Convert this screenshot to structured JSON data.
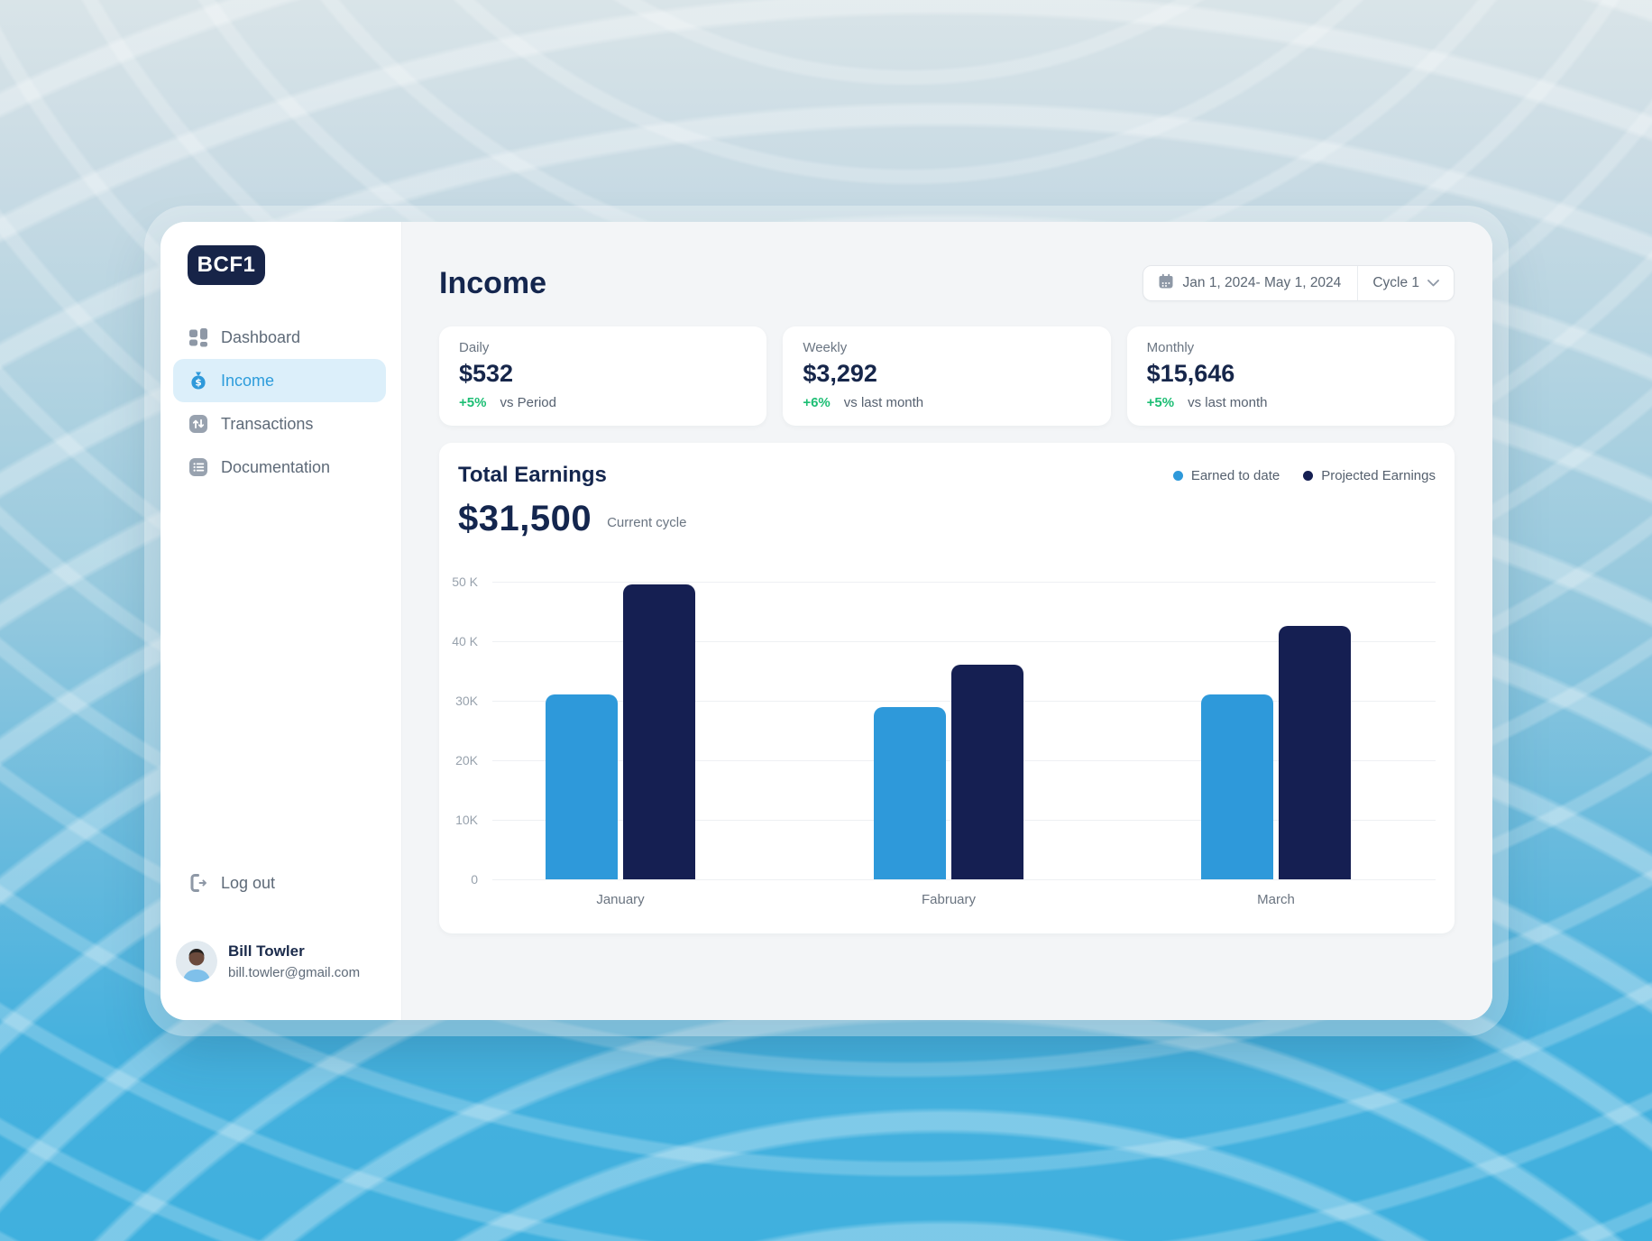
{
  "brand": {
    "logo": "BCF1"
  },
  "sidebar": {
    "items": [
      {
        "label": "Dashboard",
        "icon": "dashboard-grid-icon"
      },
      {
        "label": "Income",
        "icon": "money-bag-icon"
      },
      {
        "label": "Transactions",
        "icon": "transactions-arrows-icon"
      },
      {
        "label": "Documentation",
        "icon": "documentation-list-icon"
      }
    ],
    "active_item": "Income",
    "logout_label": "Log out",
    "user": {
      "name": "Bill Towler",
      "email": "bill.towler@gmail.com"
    }
  },
  "header": {
    "title": "Income",
    "date_range": "Jan 1, 2024- May 1, 2024",
    "cycle": "Cycle 1"
  },
  "stats": [
    {
      "label": "Daily",
      "value": "$532",
      "delta": "+5%",
      "note": "vs Period"
    },
    {
      "label": "Weekly",
      "value": "$3,292",
      "delta": "+6%",
      "note": "vs last month"
    },
    {
      "label": "Monthly",
      "value": "$15,646",
      "delta": "+5%",
      "note": "vs last month"
    }
  ],
  "earnings": {
    "title": "Total Earnings",
    "total": "$31,500",
    "total_note": "Current cycle"
  },
  "chart_data": {
    "type": "bar",
    "title": "Total Earnings",
    "categories": [
      "January",
      "Fabruary",
      "March"
    ],
    "series": [
      {
        "name": "Earned to date",
        "color": "#2E99DA",
        "values": [
          31000,
          29000,
          31000
        ]
      },
      {
        "name": "Projected Earnings",
        "color": "#151F52",
        "values": [
          49500,
          36000,
          42500
        ]
      }
    ],
    "xlabel": "",
    "ylabel": "",
    "ylim": [
      0,
      50000
    ],
    "ytick_labels": [
      "50 K",
      "40 K",
      "30K",
      "20K",
      "10K",
      "0"
    ],
    "grid": true,
    "legend_position": "top-right"
  },
  "colors": {
    "accent_blue": "#2E99DA",
    "navy": "#151F52",
    "green": "#1DBE74",
    "heading_navy": "#14264E",
    "active_nav_bg": "#DCEFFA",
    "active_nav_text": "#2D9CDB"
  }
}
